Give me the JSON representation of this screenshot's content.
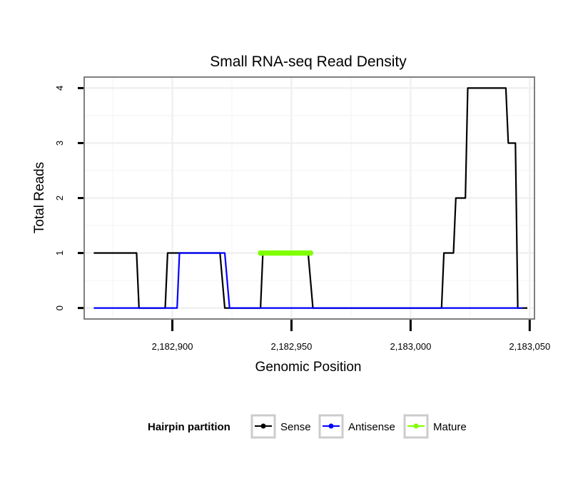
{
  "chart_data": {
    "type": "line",
    "title": "Small RNA-seq Read Density",
    "xlabel": "Genomic Position",
    "ylabel": "Total Reads",
    "xlim": [
      2182863,
      2183052
    ],
    "ylim": [
      -0.2,
      4.2
    ],
    "grid": true,
    "x_ticks": [
      {
        "value": 2182900,
        "label": "2,182,900"
      },
      {
        "value": 2182950,
        "label": "2,182,950"
      },
      {
        "value": 2183000,
        "label": "2,183,000"
      },
      {
        "value": 2183050,
        "label": "2,183,050"
      }
    ],
    "y_ticks": [
      {
        "value": 0,
        "label": "0"
      },
      {
        "value": 1,
        "label": "1"
      },
      {
        "value": 2,
        "label": "2"
      },
      {
        "value": 3,
        "label": "3"
      },
      {
        "value": 4,
        "label": "4"
      }
    ],
    "legend": {
      "title": "Hairpin partition",
      "position": "bottom"
    },
    "series": [
      {
        "name": "Sense",
        "color": "#000000",
        "style": "line",
        "points": [
          [
            2182867,
            1
          ],
          [
            2182885,
            1
          ],
          [
            2182886,
            0
          ],
          [
            2182897,
            0
          ],
          [
            2182898,
            1
          ],
          [
            2182920,
            1
          ],
          [
            2182922,
            0
          ],
          [
            2182937,
            0
          ],
          [
            2182938,
            1
          ],
          [
            2182957,
            1
          ],
          [
            2182959,
            0
          ],
          [
            2183013,
            0
          ],
          [
            2183014,
            1
          ],
          [
            2183018,
            1
          ],
          [
            2183019,
            2
          ],
          [
            2183023,
            2
          ],
          [
            2183024,
            4
          ],
          [
            2183040,
            4
          ],
          [
            2183041,
            3
          ],
          [
            2183044,
            3
          ],
          [
            2183045,
            0
          ],
          [
            2183049,
            0
          ]
        ]
      },
      {
        "name": "Antisense",
        "color": "#0000ff",
        "style": "line",
        "points": [
          [
            2182867,
            0
          ],
          [
            2182902,
            0
          ],
          [
            2182903,
            1
          ],
          [
            2182922,
            1
          ],
          [
            2182924,
            0
          ],
          [
            2183047,
            0
          ]
        ]
      },
      {
        "name": "Mature",
        "color": "#7fff00",
        "style": "points",
        "points": [
          [
            2182937,
            1
          ],
          [
            2182938,
            1
          ],
          [
            2182939,
            1
          ],
          [
            2182940,
            1
          ],
          [
            2182941,
            1
          ],
          [
            2182942,
            1
          ],
          [
            2182943,
            1
          ],
          [
            2182944,
            1
          ],
          [
            2182945,
            1
          ],
          [
            2182946,
            1
          ],
          [
            2182947,
            1
          ],
          [
            2182948,
            1
          ],
          [
            2182949,
            1
          ],
          [
            2182950,
            1
          ],
          [
            2182951,
            1
          ],
          [
            2182952,
            1
          ],
          [
            2182953,
            1
          ],
          [
            2182954,
            1
          ],
          [
            2182955,
            1
          ],
          [
            2182956,
            1
          ],
          [
            2182957,
            1
          ],
          [
            2182958,
            1
          ]
        ]
      }
    ]
  }
}
